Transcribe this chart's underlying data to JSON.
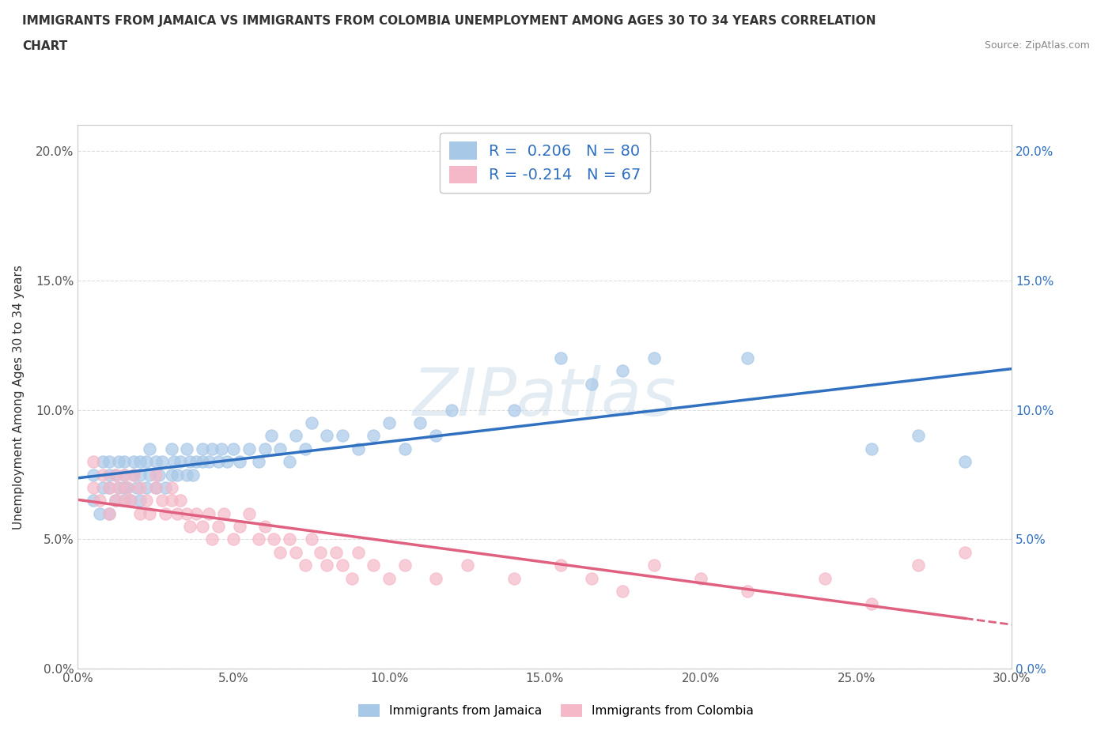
{
  "title_line1": "IMMIGRANTS FROM JAMAICA VS IMMIGRANTS FROM COLOMBIA UNEMPLOYMENT AMONG AGES 30 TO 34 YEARS CORRELATION",
  "title_line2": "CHART",
  "source": "Source: ZipAtlas.com",
  "ylabel": "Unemployment Among Ages 30 to 34 years",
  "xlim": [
    0.0,
    0.3
  ],
  "ylim": [
    0.0,
    0.21
  ],
  "xticks": [
    0.0,
    0.05,
    0.1,
    0.15,
    0.2,
    0.25,
    0.3
  ],
  "yticks": [
    0.0,
    0.05,
    0.1,
    0.15,
    0.2
  ],
  "xtick_labels": [
    "0.0%",
    "5.0%",
    "10.0%",
    "15.0%",
    "20.0%",
    "25.0%",
    "30.0%"
  ],
  "ytick_labels": [
    "0.0%",
    "5.0%",
    "10.0%",
    "15.0%",
    "20.0%"
  ],
  "legend_jamaica": "Immigrants from Jamaica",
  "legend_colombia": "Immigrants from Colombia",
  "R_jamaica": 0.206,
  "N_jamaica": 80,
  "R_colombia": -0.214,
  "N_colombia": 67,
  "color_jamaica": "#a8c8e8",
  "color_colombia": "#f5b8c8",
  "line_color_jamaica": "#3070c0",
  "line_color_colombia": "#e06080",
  "background_color": "#ffffff",
  "watermark": "ZIPatlas",
  "jamaica_x": [
    0.005,
    0.005,
    0.007,
    0.008,
    0.008,
    0.01,
    0.01,
    0.01,
    0.01,
    0.012,
    0.012,
    0.013,
    0.013,
    0.015,
    0.015,
    0.015,
    0.015,
    0.016,
    0.017,
    0.018,
    0.018,
    0.019,
    0.02,
    0.02,
    0.02,
    0.022,
    0.022,
    0.023,
    0.023,
    0.025,
    0.025,
    0.026,
    0.027,
    0.028,
    0.03,
    0.03,
    0.031,
    0.032,
    0.033,
    0.035,
    0.035,
    0.036,
    0.037,
    0.038,
    0.04,
    0.04,
    0.042,
    0.043,
    0.045,
    0.046,
    0.048,
    0.05,
    0.052,
    0.055,
    0.058,
    0.06,
    0.062,
    0.065,
    0.068,
    0.07,
    0.073,
    0.075,
    0.08,
    0.085,
    0.09,
    0.095,
    0.1,
    0.105,
    0.11,
    0.115,
    0.12,
    0.14,
    0.155,
    0.165,
    0.175,
    0.185,
    0.215,
    0.255,
    0.27,
    0.285
  ],
  "jamaica_y": [
    0.065,
    0.075,
    0.06,
    0.08,
    0.07,
    0.06,
    0.07,
    0.075,
    0.08,
    0.065,
    0.075,
    0.07,
    0.08,
    0.065,
    0.07,
    0.075,
    0.08,
    0.07,
    0.065,
    0.075,
    0.08,
    0.07,
    0.065,
    0.08,
    0.075,
    0.07,
    0.08,
    0.075,
    0.085,
    0.07,
    0.08,
    0.075,
    0.08,
    0.07,
    0.075,
    0.085,
    0.08,
    0.075,
    0.08,
    0.075,
    0.085,
    0.08,
    0.075,
    0.08,
    0.085,
    0.08,
    0.08,
    0.085,
    0.08,
    0.085,
    0.08,
    0.085,
    0.08,
    0.085,
    0.08,
    0.085,
    0.09,
    0.085,
    0.08,
    0.09,
    0.085,
    0.095,
    0.09,
    0.09,
    0.085,
    0.09,
    0.095,
    0.085,
    0.095,
    0.09,
    0.1,
    0.1,
    0.12,
    0.11,
    0.115,
    0.12,
    0.12,
    0.085,
    0.09,
    0.08
  ],
  "colombia_x": [
    0.005,
    0.005,
    0.007,
    0.008,
    0.01,
    0.01,
    0.012,
    0.012,
    0.013,
    0.015,
    0.015,
    0.016,
    0.017,
    0.018,
    0.02,
    0.02,
    0.022,
    0.023,
    0.025,
    0.025,
    0.027,
    0.028,
    0.03,
    0.03,
    0.032,
    0.033,
    0.035,
    0.036,
    0.038,
    0.04,
    0.042,
    0.043,
    0.045,
    0.047,
    0.05,
    0.052,
    0.055,
    0.058,
    0.06,
    0.063,
    0.065,
    0.068,
    0.07,
    0.073,
    0.075,
    0.078,
    0.08,
    0.083,
    0.085,
    0.088,
    0.09,
    0.095,
    0.1,
    0.105,
    0.115,
    0.125,
    0.14,
    0.155,
    0.165,
    0.175,
    0.185,
    0.2,
    0.215,
    0.24,
    0.255,
    0.27,
    0.285
  ],
  "colombia_y": [
    0.07,
    0.08,
    0.065,
    0.075,
    0.06,
    0.07,
    0.065,
    0.075,
    0.07,
    0.065,
    0.075,
    0.07,
    0.065,
    0.075,
    0.06,
    0.07,
    0.065,
    0.06,
    0.07,
    0.075,
    0.065,
    0.06,
    0.07,
    0.065,
    0.06,
    0.065,
    0.06,
    0.055,
    0.06,
    0.055,
    0.06,
    0.05,
    0.055,
    0.06,
    0.05,
    0.055,
    0.06,
    0.05,
    0.055,
    0.05,
    0.045,
    0.05,
    0.045,
    0.04,
    0.05,
    0.045,
    0.04,
    0.045,
    0.04,
    0.035,
    0.045,
    0.04,
    0.035,
    0.04,
    0.035,
    0.04,
    0.035,
    0.04,
    0.035,
    0.03,
    0.04,
    0.035,
    0.03,
    0.035,
    0.025,
    0.04,
    0.045
  ]
}
